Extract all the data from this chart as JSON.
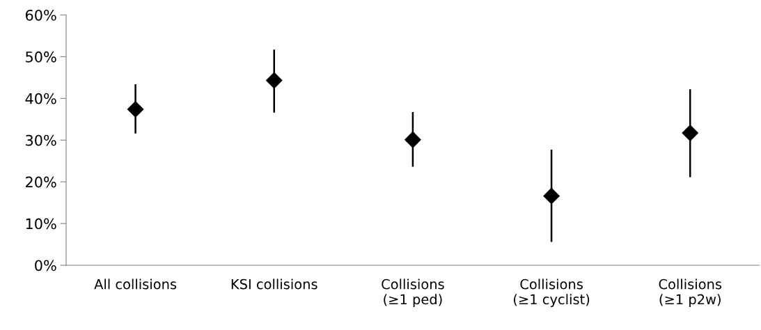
{
  "chart_data": {
    "type": "scatter",
    "marker": "diamond",
    "categories": [
      "All collisions",
      "KSI collisions",
      "Collisions\n(≥1 ped)",
      "Collisions\n(≥1 cyclist)",
      "Collisions\n(≥1 p2w)"
    ],
    "values": [
      37.4,
      44.3,
      30.1,
      16.6,
      31.7
    ],
    "errors": [
      [
        31.6,
        43.4
      ],
      [
        36.6,
        51.7
      ],
      [
        23.6,
        36.7
      ],
      [
        5.6,
        27.7
      ],
      [
        21.1,
        42.2
      ]
    ],
    "color": "#000000",
    "ylim": [
      0,
      60
    ],
    "yticks": [
      {
        "value": 0,
        "label": "0%"
      },
      {
        "value": 10,
        "label": "10%"
      },
      {
        "value": 20,
        "label": "20%"
      },
      {
        "value": 30,
        "label": "30%"
      },
      {
        "value": 40,
        "label": "40%"
      },
      {
        "value": 50,
        "label": "50%"
      },
      {
        "value": 60,
        "label": "60%"
      }
    ],
    "grid": false,
    "legend": false
  }
}
